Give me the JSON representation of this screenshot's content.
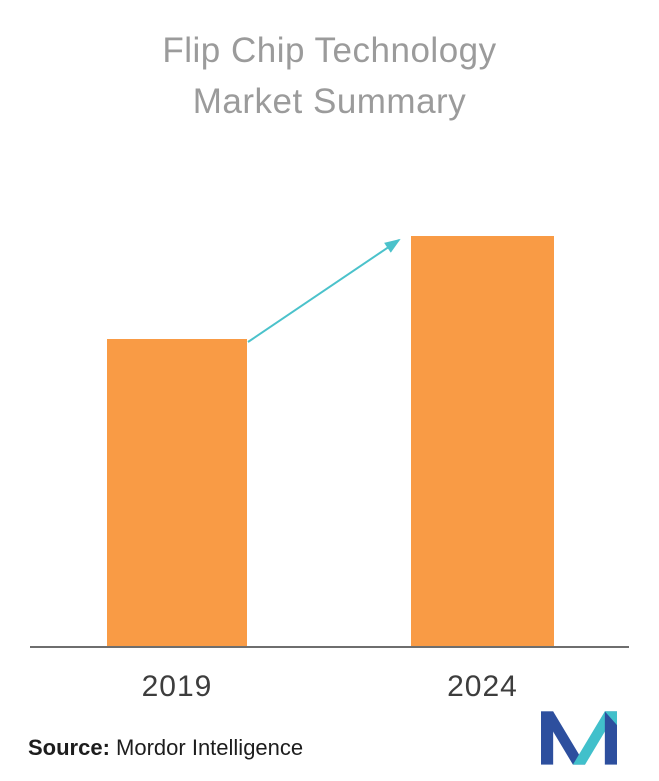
{
  "title": {
    "line1": "Flip Chip Technology",
    "line2": "Market Summary"
  },
  "source": {
    "label": "Source:",
    "text": " Mordor Intelligence"
  },
  "chart_data": {
    "type": "bar",
    "title": "Flip Chip Technology Market Summary",
    "categories": [
      "2019",
      "2024"
    ],
    "values": [
      75,
      100
    ],
    "xlabel": "",
    "ylabel": "",
    "ylim": [
      0,
      100
    ],
    "grid": false,
    "legend": false,
    "bar_color": "#F99B45",
    "arrow_color": "#4BC2CB",
    "annotations": [
      "growth arrow from top of 2019 bar to top of 2024 bar"
    ]
  },
  "logo": {
    "name": "mordor-intelligence-logo",
    "blue": "#2D4F9E",
    "teal": "#41C0CB"
  }
}
